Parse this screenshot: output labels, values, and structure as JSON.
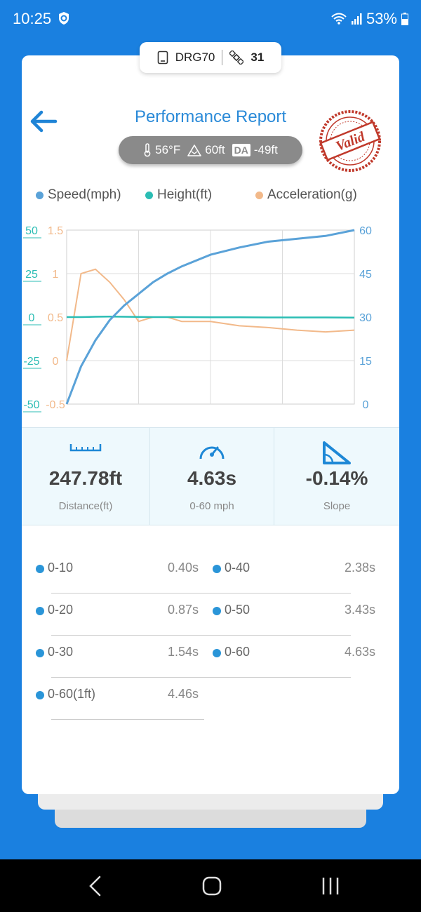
{
  "status_bar": {
    "time": "10:25",
    "battery": "53%"
  },
  "device": {
    "name": "DRG70",
    "satellites": "31"
  },
  "header": {
    "title": "Performance Report",
    "stamp_text": "Valid"
  },
  "conditions": {
    "temperature": "56°F",
    "elevation": "60ft",
    "da_label": "DA",
    "density_altitude": "-49ft"
  },
  "colors": {
    "speed": "#5aa2d8",
    "height": "#2bbdb4",
    "acceleration": "#f2b98a",
    "accent": "#1a80e0"
  },
  "chart_data": {
    "type": "line",
    "legend": [
      "Speed(mph)",
      "Height(ft)",
      "Acceleration(g)"
    ],
    "axes": {
      "height_ticks": [
        "50",
        "25",
        "0",
        "-25",
        "-50"
      ],
      "height_ylim": [
        -50,
        50
      ],
      "acceleration_ticks": [
        "1.5",
        "1",
        "0.5",
        "0",
        "-0.5"
      ],
      "acceleration_ylim": [
        -0.5,
        1.5
      ],
      "speed_ticks": [
        "60",
        "45",
        "30",
        "15",
        "0"
      ],
      "speed_ylim": [
        0,
        60
      ]
    },
    "x": [
      0,
      0.05,
      0.1,
      0.15,
      0.2,
      0.25,
      0.3,
      0.35,
      0.4,
      0.5,
      0.6,
      0.7,
      0.8,
      0.9,
      1.0
    ],
    "series": [
      {
        "name": "Speed(mph)",
        "values": [
          0,
          13,
          22,
          29,
          34,
          38,
          42,
          45,
          47.5,
          51.5,
          54,
          56,
          57,
          58,
          60
        ]
      },
      {
        "name": "Height(ft)",
        "values": [
          0,
          0,
          0.2,
          0.3,
          0.2,
          0.1,
          0,
          0,
          0,
          -0.1,
          -0.1,
          -0.2,
          -0.2,
          -0.2,
          -0.3
        ]
      },
      {
        "name": "Acceleration(g)",
        "values": [
          0,
          1.0,
          1.05,
          0.9,
          0.7,
          0.45,
          0.5,
          0.5,
          0.45,
          0.45,
          0.4,
          0.38,
          0.35,
          0.33,
          0.35
        ]
      }
    ]
  },
  "stats": [
    {
      "value": "247.78ft",
      "label": "Distance(ft)",
      "icon": "ruler-icon"
    },
    {
      "value": "4.63s",
      "label": "0-60 mph",
      "icon": "speedometer-icon"
    },
    {
      "value": "-0.14%",
      "label": "Slope",
      "icon": "slope-icon"
    }
  ],
  "splits": [
    {
      "label": "0-10",
      "value": "0.40s"
    },
    {
      "label": "0-40",
      "value": "2.38s"
    },
    {
      "label": "0-20",
      "value": "0.87s"
    },
    {
      "label": "0-50",
      "value": "3.43s"
    },
    {
      "label": "0-30",
      "value": "1.54s"
    },
    {
      "label": "0-60",
      "value": "4.63s"
    },
    {
      "label": "0-60(1ft)",
      "value": "4.46s"
    }
  ]
}
